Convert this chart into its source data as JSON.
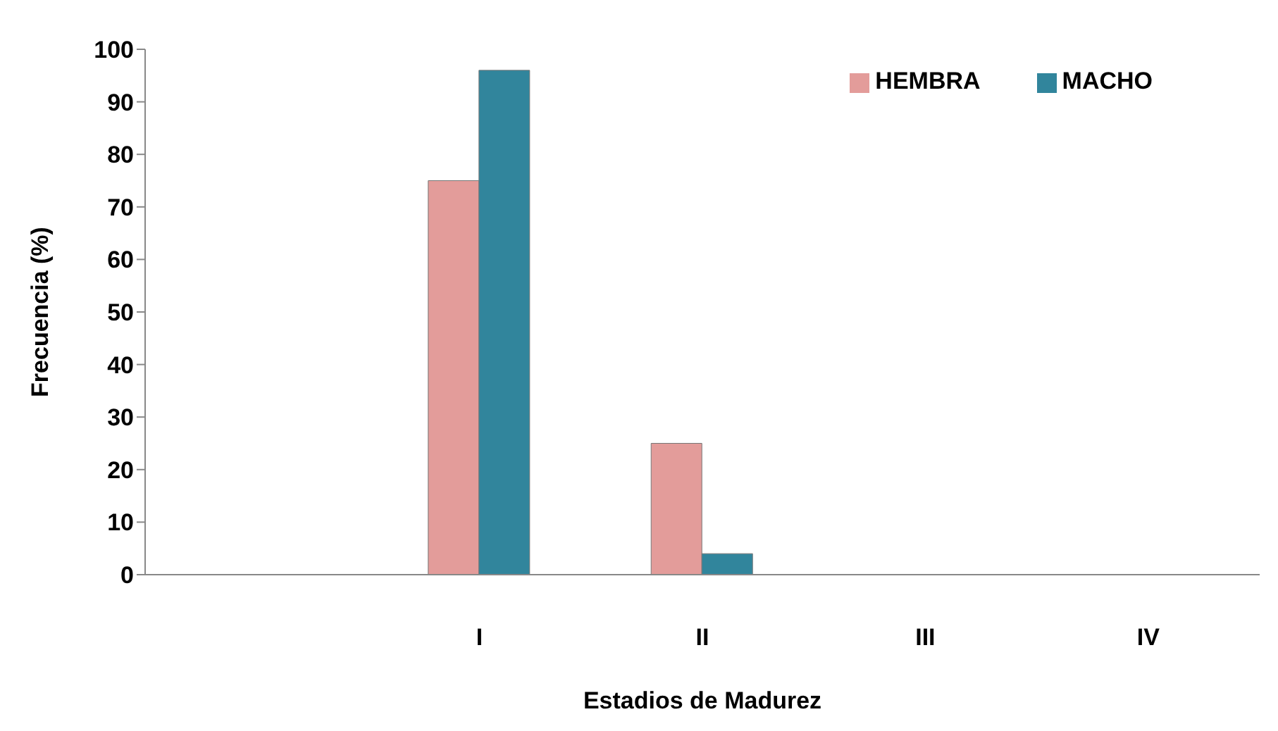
{
  "chart_data": {
    "type": "bar",
    "xlabel": "Estadios de Madurez",
    "ylabel": "Frecuencia (%)",
    "categories": [
      null,
      "I",
      "II",
      "III",
      "IV"
    ],
    "series": [
      {
        "name": "HEMBRA",
        "color": "#e39c9a",
        "values": [
          null,
          75,
          25,
          0,
          0
        ]
      },
      {
        "name": "MACHO",
        "color": "#31859c",
        "values": [
          null,
          96,
          4,
          0,
          0
        ]
      }
    ],
    "ylim": [
      0,
      100
    ],
    "yticks": [
      0,
      10,
      20,
      30,
      40,
      50,
      60,
      70,
      80,
      90,
      100
    ],
    "grid": false,
    "legend": "top right"
  }
}
